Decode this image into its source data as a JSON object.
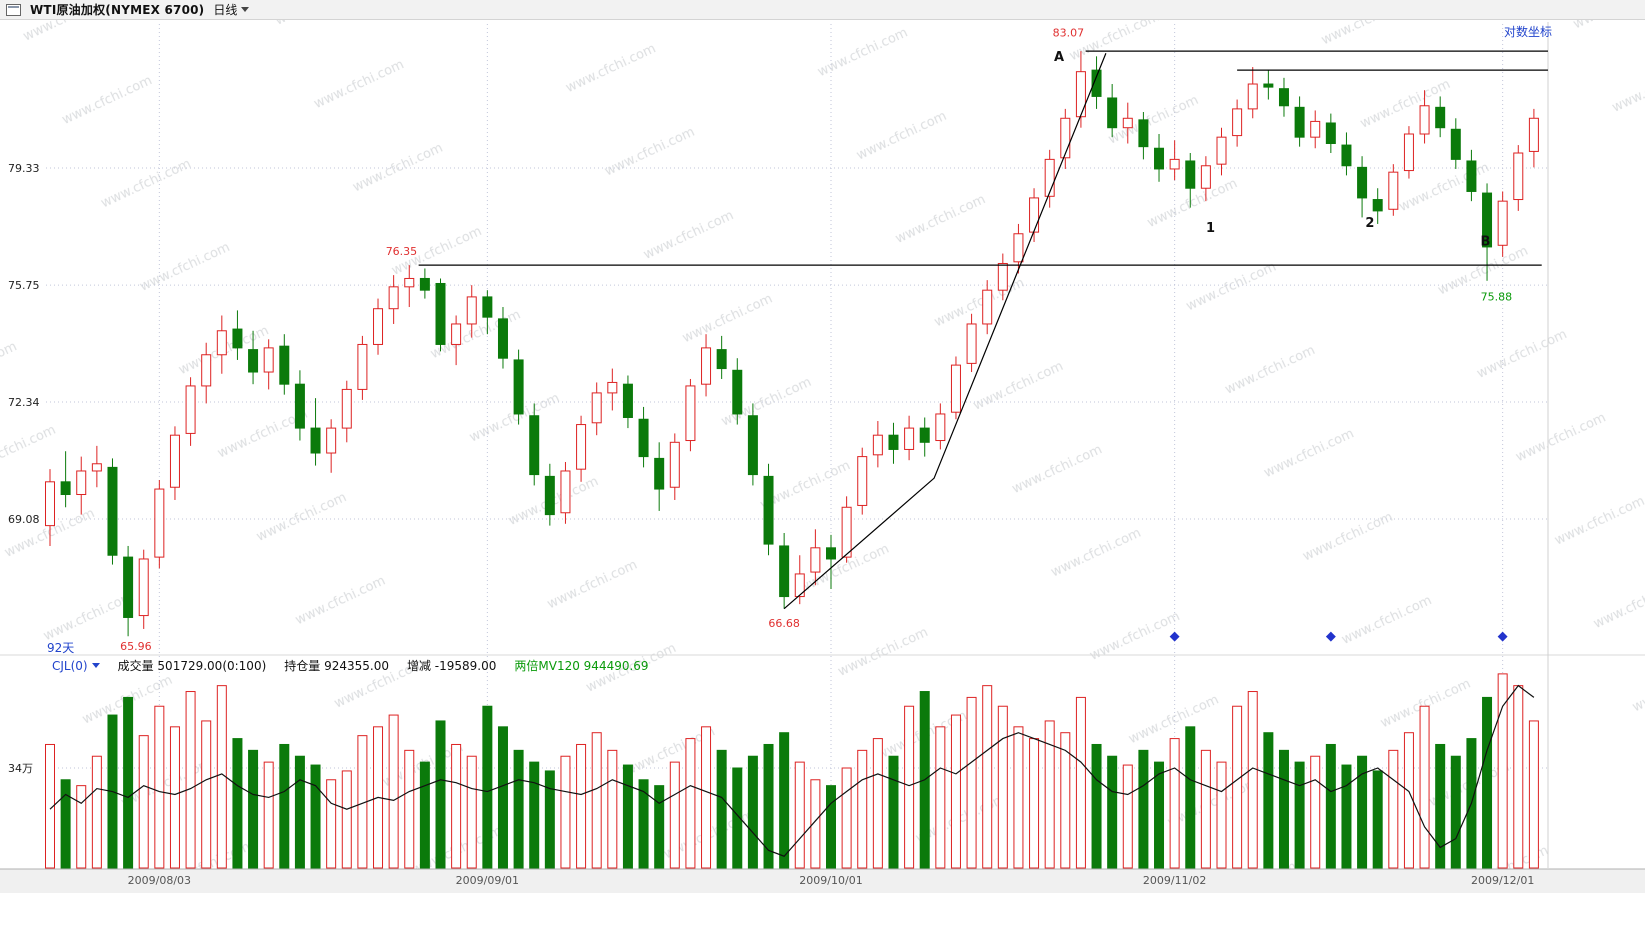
{
  "app": {
    "title": "WTI原油加权(NYMEX 6700)",
    "period": "日线",
    "scale_toggle": "对数坐标",
    "days_label": "92天"
  },
  "volume_header": {
    "indicator": "CJL(0)",
    "volume": "成交量 501729.00(0:100)",
    "open_interest": "持仓量 924355.00",
    "change": "增减 -19589.00",
    "mv": "两倍MV120 944490.69"
  },
  "watermark": "www.cfchi.com",
  "chart_data": {
    "type": "candlestick+volume",
    "title": "WTI原油加权(NYMEX 6700) 日线",
    "y_axis": {
      "scale": "log",
      "ticks": [
        79.33,
        75.75,
        72.34,
        69.08
      ]
    },
    "volume_axis_tick": "34万",
    "x_axis": [
      {
        "index": 7,
        "label": "2009/08/03"
      },
      {
        "index": 28,
        "label": "2009/09/01"
      },
      {
        "index": 50,
        "label": "2009/10/01"
      },
      {
        "index": 72,
        "label": "2009/11/02"
      },
      {
        "index": 93,
        "label": "2009/12/01"
      }
    ],
    "colors": {
      "up": "#dd2222",
      "down": "#0b7a0b",
      "grid": "#c2c6da",
      "level_line": "#000000",
      "trend_line": "#000000",
      "volume_line": "#111111",
      "diamond": "#2233cc",
      "annotation_red": "#e03030",
      "annotation_green": "#0a9a0a",
      "accent_blue": "#2244cc"
    },
    "candles": [
      [
        68.9,
        70.45,
        68.35,
        70.1
      ],
      [
        70.1,
        70.95,
        69.4,
        69.75
      ],
      [
        69.75,
        70.8,
        69.2,
        70.4
      ],
      [
        70.4,
        71.1,
        69.95,
        70.6
      ],
      [
        70.5,
        70.75,
        67.85,
        68.1
      ],
      [
        68.05,
        68.35,
        65.96,
        66.45
      ],
      [
        66.5,
        68.25,
        66.15,
        68.0
      ],
      [
        68.05,
        70.15,
        67.75,
        69.9
      ],
      [
        69.95,
        71.65,
        69.6,
        71.4
      ],
      [
        71.45,
        73.05,
        71.1,
        72.8
      ],
      [
        72.8,
        74.05,
        72.3,
        73.7
      ],
      [
        73.7,
        74.85,
        73.15,
        74.4
      ],
      [
        74.45,
        75.0,
        73.55,
        73.9
      ],
      [
        73.85,
        74.4,
        72.85,
        73.2
      ],
      [
        73.2,
        74.15,
        72.7,
        73.9
      ],
      [
        73.95,
        74.3,
        72.55,
        72.85
      ],
      [
        72.85,
        73.25,
        71.25,
        71.6
      ],
      [
        71.6,
        72.45,
        70.55,
        70.9
      ],
      [
        70.9,
        71.85,
        70.35,
        71.6
      ],
      [
        71.6,
        72.95,
        71.2,
        72.7
      ],
      [
        72.7,
        74.25,
        72.4,
        74.0
      ],
      [
        74.0,
        75.35,
        73.7,
        75.05
      ],
      [
        75.05,
        76.05,
        74.6,
        75.7
      ],
      [
        75.7,
        76.35,
        75.1,
        75.95
      ],
      [
        75.95,
        76.25,
        75.35,
        75.6
      ],
      [
        75.8,
        75.95,
        73.8,
        74.0
      ],
      [
        74.0,
        74.85,
        73.4,
        74.6
      ],
      [
        74.6,
        75.75,
        74.2,
        75.4
      ],
      [
        75.4,
        75.6,
        74.3,
        74.8
      ],
      [
        74.75,
        75.1,
        73.3,
        73.6
      ],
      [
        73.55,
        73.85,
        71.7,
        72.0
      ],
      [
        71.95,
        72.3,
        70.0,
        70.3
      ],
      [
        70.25,
        70.6,
        68.9,
        69.2
      ],
      [
        69.25,
        70.65,
        68.95,
        70.4
      ],
      [
        70.45,
        71.95,
        70.1,
        71.7
      ],
      [
        71.75,
        72.9,
        71.4,
        72.6
      ],
      [
        72.6,
        73.3,
        72.1,
        72.9
      ],
      [
        72.85,
        73.1,
        71.6,
        71.9
      ],
      [
        71.85,
        72.2,
        70.5,
        70.8
      ],
      [
        70.75,
        71.2,
        69.3,
        69.9
      ],
      [
        69.95,
        71.45,
        69.6,
        71.2
      ],
      [
        71.25,
        73.0,
        70.95,
        72.8
      ],
      [
        72.85,
        74.3,
        72.5,
        73.9
      ],
      [
        73.85,
        74.25,
        73.0,
        73.3
      ],
      [
        73.25,
        73.6,
        71.7,
        72.0
      ],
      [
        71.95,
        72.3,
        70.0,
        70.3
      ],
      [
        70.25,
        70.6,
        68.1,
        68.4
      ],
      [
        68.35,
        68.7,
        66.68,
        67.0
      ],
      [
        67.0,
        68.1,
        66.8,
        67.6
      ],
      [
        67.65,
        68.8,
        67.3,
        68.3
      ],
      [
        68.3,
        68.65,
        67.2,
        68.0
      ],
      [
        68.05,
        69.7,
        67.9,
        69.4
      ],
      [
        69.45,
        71.05,
        69.2,
        70.8
      ],
      [
        70.85,
        71.8,
        70.5,
        71.4
      ],
      [
        71.4,
        71.75,
        70.6,
        71.0
      ],
      [
        71.0,
        71.95,
        70.7,
        71.6
      ],
      [
        71.6,
        71.9,
        70.8,
        71.2
      ],
      [
        71.25,
        72.3,
        71.0,
        72.0
      ],
      [
        72.05,
        73.65,
        71.85,
        73.4
      ],
      [
        73.45,
        74.9,
        73.2,
        74.6
      ],
      [
        74.6,
        75.9,
        74.3,
        75.6
      ],
      [
        75.6,
        76.7,
        75.3,
        76.4
      ],
      [
        76.45,
        77.6,
        76.1,
        77.3
      ],
      [
        77.35,
        78.7,
        77.05,
        78.4
      ],
      [
        78.45,
        79.9,
        78.1,
        79.6
      ],
      [
        79.65,
        81.2,
        79.3,
        80.9
      ],
      [
        80.95,
        83.07,
        80.6,
        82.4
      ],
      [
        82.45,
        82.9,
        81.2,
        81.6
      ],
      [
        81.55,
        82.0,
        80.3,
        80.6
      ],
      [
        80.6,
        81.4,
        80.1,
        80.9
      ],
      [
        80.85,
        81.1,
        79.6,
        80.0
      ],
      [
        79.95,
        80.4,
        78.9,
        79.3
      ],
      [
        79.3,
        80.2,
        78.95,
        79.6
      ],
      [
        79.55,
        79.8,
        78.1,
        78.7
      ],
      [
        78.7,
        79.7,
        78.3,
        79.4
      ],
      [
        79.45,
        80.6,
        79.1,
        80.3
      ],
      [
        80.35,
        81.5,
        80.0,
        81.2
      ],
      [
        81.2,
        82.55,
        80.9,
        82.0
      ],
      [
        82.0,
        82.45,
        81.5,
        81.9
      ],
      [
        81.85,
        82.2,
        80.95,
        81.3
      ],
      [
        81.25,
        81.6,
        80.0,
        80.3
      ],
      [
        80.3,
        81.15,
        79.95,
        80.8
      ],
      [
        80.75,
        81.05,
        79.8,
        80.1
      ],
      [
        80.05,
        80.45,
        79.1,
        79.4
      ],
      [
        79.35,
        79.7,
        77.8,
        78.4
      ],
      [
        78.35,
        78.7,
        77.6,
        78.0
      ],
      [
        78.05,
        79.45,
        77.85,
        79.2
      ],
      [
        79.25,
        80.65,
        79.0,
        80.4
      ],
      [
        80.4,
        81.8,
        80.1,
        81.3
      ],
      [
        81.25,
        81.6,
        80.3,
        80.6
      ],
      [
        80.55,
        80.9,
        79.3,
        79.6
      ],
      [
        79.55,
        79.9,
        78.3,
        78.6
      ],
      [
        78.55,
        78.85,
        75.88,
        76.9
      ],
      [
        76.95,
        78.6,
        76.6,
        78.3
      ],
      [
        78.35,
        80.05,
        78.0,
        79.8
      ],
      [
        79.85,
        81.2,
        79.35,
        80.9
      ]
    ],
    "volume_10k": [
      42,
      30,
      28,
      38,
      52,
      58,
      45,
      55,
      48,
      60,
      50,
      62,
      44,
      40,
      36,
      42,
      38,
      35,
      30,
      33,
      45,
      48,
      52,
      40,
      36,
      50,
      42,
      38,
      55,
      48,
      40,
      36,
      33,
      38,
      42,
      46,
      40,
      35,
      30,
      28,
      36,
      44,
      48,
      40,
      34,
      38,
      42,
      46,
      36,
      30,
      28,
      34,
      40,
      44,
      38,
      55,
      60,
      48,
      52,
      58,
      62,
      55,
      48,
      44,
      50,
      46,
      58,
      42,
      38,
      35,
      40,
      36,
      44,
      48,
      40,
      36,
      55,
      60,
      46,
      40,
      36,
      38,
      42,
      35,
      38,
      33,
      40,
      46,
      55,
      42,
      38,
      44,
      58,
      66,
      62,
      50
    ],
    "volume_line_10k": [
      20,
      25,
      22,
      27,
      26,
      24,
      28,
      26,
      25,
      27,
      30,
      32,
      28,
      25,
      24,
      26,
      30,
      28,
      22,
      20,
      22,
      24,
      23,
      26,
      28,
      30,
      29,
      27,
      26,
      28,
      30,
      29,
      27,
      26,
      25,
      27,
      30,
      28,
      26,
      22,
      25,
      28,
      26,
      24,
      18,
      12,
      6,
      4,
      10,
      16,
      22,
      26,
      30,
      32,
      30,
      28,
      30,
      34,
      32,
      36,
      40,
      44,
      46,
      44,
      42,
      40,
      36,
      30,
      26,
      25,
      28,
      32,
      34,
      30,
      28,
      26,
      30,
      34,
      32,
      30,
      28,
      30,
      26,
      28,
      32,
      34,
      30,
      26,
      14,
      7,
      10,
      22,
      40,
      55,
      62,
      58
    ],
    "levels": [
      {
        "price": 83.07,
        "from": 66.3,
        "to": 95.9
      },
      {
        "price": 82.45,
        "from": 76.0,
        "to": 95.9
      },
      {
        "price": 76.35,
        "from": 23.6,
        "to": 95.5
      }
    ],
    "trendline": [
      [
        47,
        66.68
      ],
      [
        56.6,
        70.2
      ],
      [
        67.6,
        83.0
      ]
    ],
    "annotations": [
      {
        "text": "83.07",
        "i": 65.2,
        "price": 83.55,
        "color": "#e03030"
      },
      {
        "text": "A",
        "i": 64.6,
        "price": 82.75,
        "color": "#111111",
        "bold": true
      },
      {
        "text": "76.35",
        "i": 22.5,
        "price": 76.65,
        "color": "#e03030"
      },
      {
        "text": "66.68",
        "i": 47.0,
        "price": 66.2,
        "color": "#e03030"
      },
      {
        "text": "65.96",
        "i": 5.5,
        "price": 65.6,
        "color": "#e03030"
      },
      {
        "text": "75.88",
        "i": 92.6,
        "price": 75.3,
        "color": "#0a9a0a"
      },
      {
        "text": "B",
        "i": 91.9,
        "price": 76.95,
        "color": "#111111",
        "bold": true
      },
      {
        "text": "1",
        "i": 74.3,
        "price": 77.35,
        "color": "#111111",
        "bold": true
      },
      {
        "text": "2",
        "i": 84.5,
        "price": 77.5,
        "color": "#111111",
        "bold": true
      }
    ],
    "diamonds": [
      72,
      82,
      93
    ]
  }
}
